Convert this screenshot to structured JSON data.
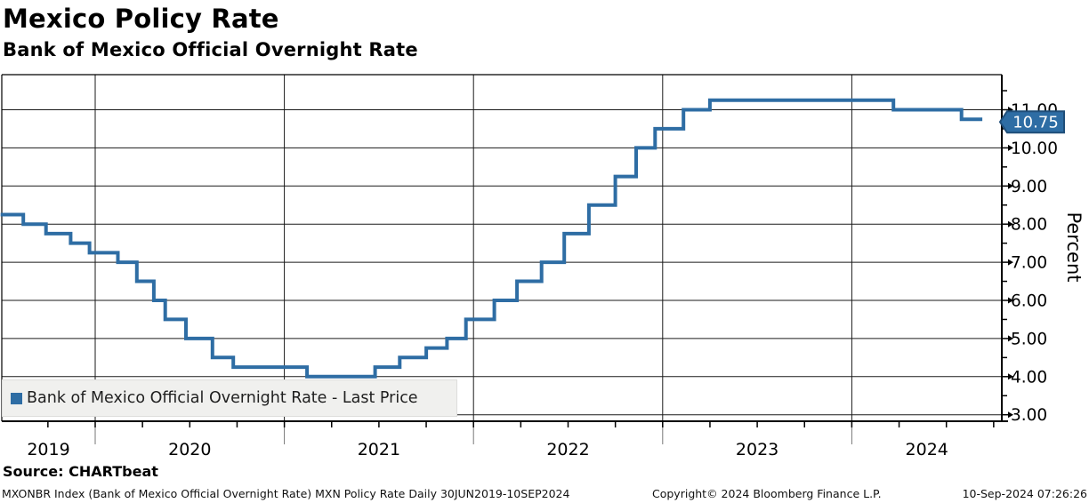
{
  "header": {
    "title": "Mexico Policy Rate",
    "subtitle": "Bank of Mexico Official Overnight Rate"
  },
  "legend": {
    "label": "Bank of Mexico Official Overnight Rate - Last Price",
    "swatch_color": "#2e6da4"
  },
  "source": {
    "label": "Source: CHARTbeat"
  },
  "footer": {
    "left": "MXONBR Index (Bank of Mexico Official Overnight Rate) MXN Policy Rate  Daily 30JUN2019-10SEP2024",
    "center": "Copyright© 2024 Bloomberg Finance L.P.",
    "right": "10-Sep-2024 07:26:26"
  },
  "chart_data": {
    "type": "line",
    "style": "step-after",
    "title": "Mexico Policy Rate",
    "series_name": "Bank of Mexico Official Overnight Rate - Last Price",
    "ylabel": "Percent",
    "ylim": [
      2.9,
      11.9
    ],
    "y_major_ticks": [
      3,
      4,
      5,
      6,
      7,
      8,
      9,
      10,
      11
    ],
    "y_tick_labels": [
      "3.00",
      "4.00",
      "5.00",
      "6.00",
      "7.00",
      "8.00",
      "9.00",
      "10.00",
      "11.00"
    ],
    "y_minor_ticks": [
      3.5,
      4.5,
      5.5,
      6.5,
      7.5,
      8.5,
      9.5,
      10.5,
      11.5
    ],
    "x_tick_labels": [
      "2019",
      "2020",
      "2021",
      "2022",
      "2023",
      "2024"
    ],
    "x_year_gridlines": [
      2020,
      2021,
      2022,
      2023,
      2024
    ],
    "x_range": [
      2019.5,
      2024.81
    ],
    "x_minor_tick_step": 0.25,
    "grid": true,
    "legend_position": "bottom-left",
    "last_price": "10.75",
    "line_color": "#2e6da4",
    "badge_border_color": "#1f4e79",
    "points": [
      [
        2019.5,
        8.25
      ],
      [
        2019.62,
        8.0
      ],
      [
        2019.74,
        7.75
      ],
      [
        2019.87,
        7.5
      ],
      [
        2019.97,
        7.25
      ],
      [
        2020.12,
        7.0
      ],
      [
        2020.22,
        6.5
      ],
      [
        2020.31,
        6.0
      ],
      [
        2020.37,
        5.5
      ],
      [
        2020.48,
        5.0
      ],
      [
        2020.62,
        4.5
      ],
      [
        2020.73,
        4.25
      ],
      [
        2021.12,
        4.0
      ],
      [
        2021.48,
        4.25
      ],
      [
        2021.61,
        4.5
      ],
      [
        2021.75,
        4.75
      ],
      [
        2021.86,
        5.0
      ],
      [
        2021.96,
        5.5
      ],
      [
        2022.11,
        6.0
      ],
      [
        2022.23,
        6.5
      ],
      [
        2022.36,
        7.0
      ],
      [
        2022.48,
        7.75
      ],
      [
        2022.61,
        8.5
      ],
      [
        2022.75,
        9.25
      ],
      [
        2022.86,
        10.0
      ],
      [
        2022.96,
        10.5
      ],
      [
        2023.11,
        11.0
      ],
      [
        2023.25,
        11.25
      ],
      [
        2024.22,
        11.0
      ],
      [
        2024.58,
        10.75
      ],
      [
        2024.69,
        10.75
      ]
    ]
  }
}
